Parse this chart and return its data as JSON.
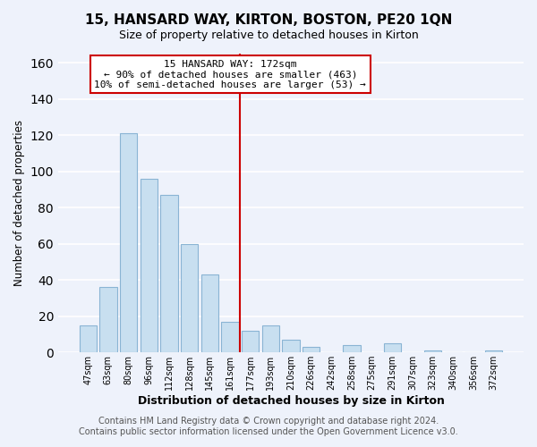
{
  "title": "15, HANSARD WAY, KIRTON, BOSTON, PE20 1QN",
  "subtitle": "Size of property relative to detached houses in Kirton",
  "xlabel": "Distribution of detached houses by size in Kirton",
  "ylabel": "Number of detached properties",
  "bar_labels": [
    "47sqm",
    "63sqm",
    "80sqm",
    "96sqm",
    "112sqm",
    "128sqm",
    "145sqm",
    "161sqm",
    "177sqm",
    "193sqm",
    "210sqm",
    "226sqm",
    "242sqm",
    "258sqm",
    "275sqm",
    "291sqm",
    "307sqm",
    "323sqm",
    "340sqm",
    "356sqm",
    "372sqm"
  ],
  "bar_heights": [
    15,
    36,
    121,
    96,
    87,
    60,
    43,
    17,
    12,
    15,
    7,
    3,
    0,
    4,
    0,
    5,
    0,
    1,
    0,
    0,
    1
  ],
  "bar_color": "#c8dff0",
  "bar_edge_color": "#8ab4d4",
  "vline_color": "#cc0000",
  "annotation_title": "15 HANSARD WAY: 172sqm",
  "annotation_line1": "← 90% of detached houses are smaller (463)",
  "annotation_line2": "10% of semi-detached houses are larger (53) →",
  "annotation_box_edge": "#cc0000",
  "ylim": [
    0,
    165
  ],
  "yticks": [
    0,
    20,
    40,
    60,
    80,
    100,
    120,
    140,
    160
  ],
  "footer1": "Contains HM Land Registry data © Crown copyright and database right 2024.",
  "footer2": "Contains public sector information licensed under the Open Government Licence v3.0.",
  "background_color": "#eef2fb",
  "plot_background": "#eef2fb",
  "title_fontsize": 11,
  "subtitle_fontsize": 9,
  "xlabel_fontsize": 9,
  "ylabel_fontsize": 8.5,
  "tick_fontsize": 7,
  "footer_fontsize": 7,
  "ann_fontsize": 8,
  "vline_index": 8
}
